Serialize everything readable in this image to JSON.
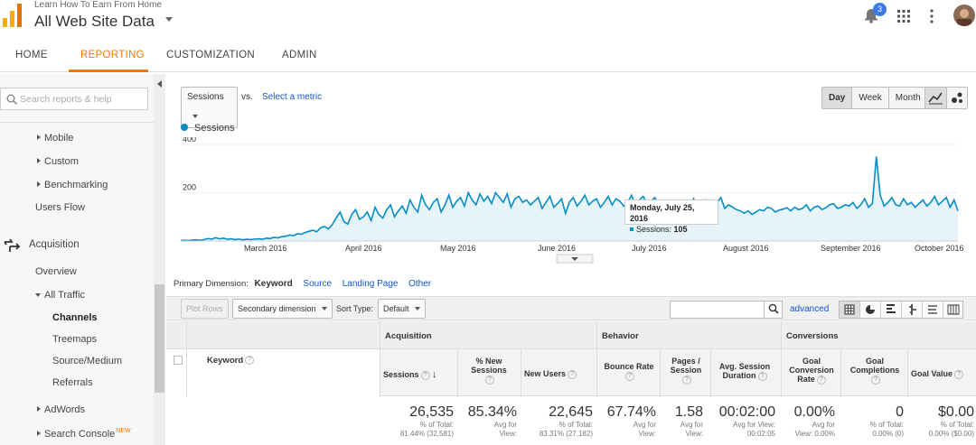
{
  "header": {
    "subtitle": "Learn How To Earn From Home",
    "title": "All Web Site Data",
    "notification_count": "3"
  },
  "nav": {
    "tabs": [
      "HOME",
      "REPORTING",
      "CUSTOMIZATION",
      "ADMIN"
    ],
    "active": "REPORTING"
  },
  "sidebar": {
    "search_placeholder": "Search reports & help",
    "items": {
      "mobile": "Mobile",
      "custom": "Custom",
      "benchmarking": "Benchmarking",
      "users_flow": "Users Flow",
      "acquisition": "Acquisition",
      "overview": "Overview",
      "all_traffic": "All Traffic",
      "channels": "Channels",
      "treemaps": "Treemaps",
      "source_medium": "Source/Medium",
      "referrals": "Referrals",
      "adwords": "AdWords",
      "search_console": "Search Console",
      "new_badge": "NEW"
    }
  },
  "controls": {
    "metric": "Sessions",
    "vs": "vs.",
    "select_metric": "Select a metric",
    "periods": [
      "Day",
      "Week",
      "Month"
    ],
    "active_period": "Day"
  },
  "chart_data": {
    "type": "area",
    "legend": "Sessions",
    "y_ticks": [
      "400",
      "200"
    ],
    "ylim": [
      0,
      400
    ],
    "x_labels": [
      "March 2016",
      "April 2016",
      "May 2016",
      "June 2016",
      "July 2016",
      "August 2016",
      "September 2016",
      "October 2016"
    ],
    "color": "#058dc7",
    "fill": "#e6f4fa",
    "series": [
      {
        "name": "Sessions",
        "values": [
          2,
          3,
          2,
          4,
          5,
          3,
          6,
          10,
          8,
          14,
          9,
          12,
          7,
          9,
          6,
          8,
          5,
          7,
          6,
          8,
          9,
          7,
          12,
          10,
          15,
          13,
          18,
          20,
          25,
          22,
          30,
          28,
          35,
          40,
          45,
          38,
          55,
          60,
          50,
          68,
          95,
          120,
          80,
          70,
          110,
          130,
          90,
          100,
          120,
          85,
          140,
          110,
          95,
          130,
          150,
          100,
          125,
          145,
          115,
          170,
          140,
          120,
          190,
          150,
          130,
          160,
          175,
          120,
          150,
          190,
          140,
          165,
          180,
          145,
          200,
          170,
          150,
          195,
          165,
          185,
          155,
          200,
          180,
          160,
          195,
          140,
          175,
          185,
          160,
          170,
          150,
          165,
          180,
          135,
          160,
          185,
          140,
          155,
          175,
          115,
          160,
          180,
          145,
          165,
          190,
          150,
          165,
          175,
          140,
          160,
          185,
          150,
          175,
          165,
          145,
          160,
          190,
          150,
          170,
          185,
          155,
          165,
          180,
          150,
          160,
          105,
          130,
          145,
          120,
          160,
          135,
          150,
          175,
          140,
          155,
          170,
          120,
          145,
          160,
          180,
          135,
          150,
          140,
          130,
          125,
          115,
          125,
          110,
          120,
          130,
          125,
          140,
          135,
          120,
          128,
          132,
          138,
          125,
          140,
          130,
          135,
          150,
          125,
          140,
          145,
          130,
          138,
          150,
          155,
          135,
          140,
          150,
          145,
          160,
          135,
          150,
          175,
          140,
          155,
          350,
          190,
          145,
          160,
          180,
          150,
          145,
          175,
          150,
          160,
          140,
          155,
          170,
          145,
          160,
          185,
          150,
          165,
          180,
          140,
          170,
          125
        ]
      }
    ],
    "tooltip": {
      "date": "Monday, July 25, 2016",
      "label": "Sessions:",
      "value": "105"
    }
  },
  "dimensions": {
    "label": "Primary Dimension:",
    "active": "Keyword",
    "others": [
      "Source",
      "Landing Page",
      "Other"
    ]
  },
  "toolbar": {
    "plot_rows": "Plot Rows",
    "secondary": "Secondary dimension",
    "sort_type_label": "Sort Type:",
    "sort_type": "Default",
    "advanced": "advanced"
  },
  "table": {
    "keyword": "Keyword",
    "groups": [
      "Acquisition",
      "Behavior",
      "Conversions"
    ],
    "columns": [
      "Sessions",
      "% New Sessions",
      "New Users",
      "Bounce Rate",
      "Pages / Session",
      "Avg. Session Duration",
      "Goal Conversion Rate",
      "Goal Completions",
      "Goal Value"
    ],
    "totals": [
      {
        "value": "26,535",
        "sub1": "% of Total:",
        "sub2": "81.44% (32,581)"
      },
      {
        "value": "85.34%",
        "sub1": "Avg for",
        "sub2": "View:"
      },
      {
        "value": "22,645",
        "sub1": "% of Total:",
        "sub2": "83.31% (27,182)"
      },
      {
        "value": "67.74%",
        "sub1": "Avg for",
        "sub2": "View:"
      },
      {
        "value": "1.58",
        "sub1": "Avg for",
        "sub2": "View:"
      },
      {
        "value": "00:02:00",
        "sub1": "Avg for View:",
        "sub2": "00:02:05"
      },
      {
        "value": "0.00%",
        "sub1": "Avg for",
        "sub2": "View: 0.00%"
      },
      {
        "value": "0",
        "sub1": "% of Total:",
        "sub2": "0.00% (0)"
      },
      {
        "value": "$0.00",
        "sub1": "% of Total:",
        "sub2": "0.00% ($0.00)"
      }
    ]
  }
}
